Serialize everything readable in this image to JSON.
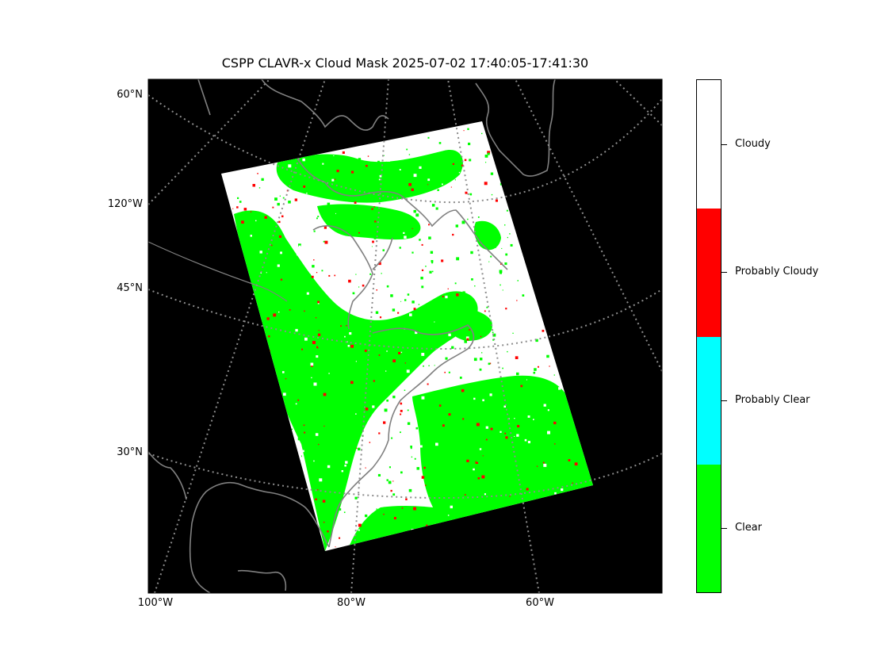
{
  "title": "CSPP CLAVR-x Cloud Mask 2025-07-02 17:40:05-17:41:30",
  "map": {
    "background": "#000000",
    "coastline_color": "#808080",
    "gridline_color": "#8c8c8c",
    "gridline_style": "dotted",
    "latitude_labels": [
      "60°N",
      "45°N",
      "30°N"
    ],
    "longitude_labels_left": [
      "120°W"
    ],
    "longitude_labels_bottom": [
      "100°W",
      "80°W",
      "60°W"
    ]
  },
  "colorbar": {
    "categories": [
      {
        "label": "Cloudy",
        "color": "#ffffff"
      },
      {
        "label": "Probably Cloudy",
        "color": "#ff0000"
      },
      {
        "label": "Probably Clear",
        "color": "#00ffff"
      },
      {
        "label": "Clear",
        "color": "#00ff00"
      }
    ]
  }
}
